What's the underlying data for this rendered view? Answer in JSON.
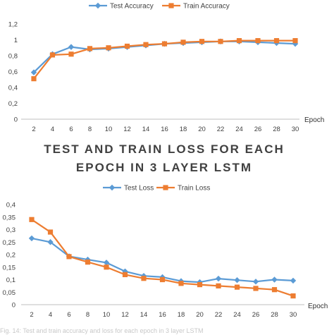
{
  "chart_data": [
    {
      "type": "line",
      "title": "",
      "x": [
        2,
        4,
        6,
        8,
        10,
        12,
        14,
        16,
        18,
        20,
        22,
        24,
        26,
        28,
        30
      ],
      "xlabel": "Epoch",
      "ylabel": "",
      "ylim": [
        0,
        1.2
      ],
      "yticks": [
        "0",
        "0,2",
        "0,4",
        "0,6",
        "0,8",
        "1",
        "1,2"
      ],
      "grid": "off",
      "legend": "top-center",
      "series": [
        {
          "name": "Test Accuracy",
          "color": "#5b9bd5",
          "marker": "diamond",
          "values": [
            0.59,
            0.82,
            0.91,
            0.88,
            0.89,
            0.91,
            0.93,
            0.95,
            0.96,
            0.97,
            0.98,
            0.98,
            0.97,
            0.96,
            0.95
          ]
        },
        {
          "name": "Train Accuracy",
          "color": "#ed7d31",
          "marker": "square",
          "values": [
            0.51,
            0.81,
            0.82,
            0.89,
            0.9,
            0.92,
            0.94,
            0.95,
            0.97,
            0.98,
            0.98,
            0.99,
            0.99,
            0.99,
            0.99
          ]
        }
      ]
    },
    {
      "type": "line",
      "title": "TEST AND TRAIN LOSS FOR EACH EPOCH IN 3 LAYER  LSTM",
      "title_lines": [
        "TEST AND TRAIN LOSS FOR EACH",
        "EPOCH IN 3 LAYER  LSTM"
      ],
      "x": [
        2,
        4,
        6,
        8,
        10,
        12,
        14,
        16,
        18,
        20,
        22,
        24,
        26,
        28,
        30
      ],
      "xlabel": "Epoch",
      "ylabel": "",
      "ylim": [
        0,
        0.4
      ],
      "yticks": [
        "0",
        "0,05",
        "0,1",
        "0,15",
        "0,2",
        "0,25",
        "0,3",
        "0,35",
        "0,4"
      ],
      "grid": "off",
      "legend": "top-center",
      "series": [
        {
          "name": "Test Loss",
          "color": "#5b9bd5",
          "marker": "diamond",
          "values": [
            0.265,
            0.25,
            0.193,
            0.18,
            0.168,
            0.133,
            0.115,
            0.11,
            0.094,
            0.09,
            0.104,
            0.098,
            0.092,
            0.1,
            0.096
          ]
        },
        {
          "name": "Train Loss",
          "color": "#ed7d31",
          "marker": "square",
          "values": [
            0.34,
            0.29,
            0.192,
            0.17,
            0.15,
            0.12,
            0.105,
            0.1,
            0.085,
            0.08,
            0.075,
            0.07,
            0.065,
            0.06,
            0.035
          ]
        }
      ]
    }
  ],
  "caption": "Fig. 14: Test and train accuracy and loss for each epoch in 3 layer LSTM"
}
